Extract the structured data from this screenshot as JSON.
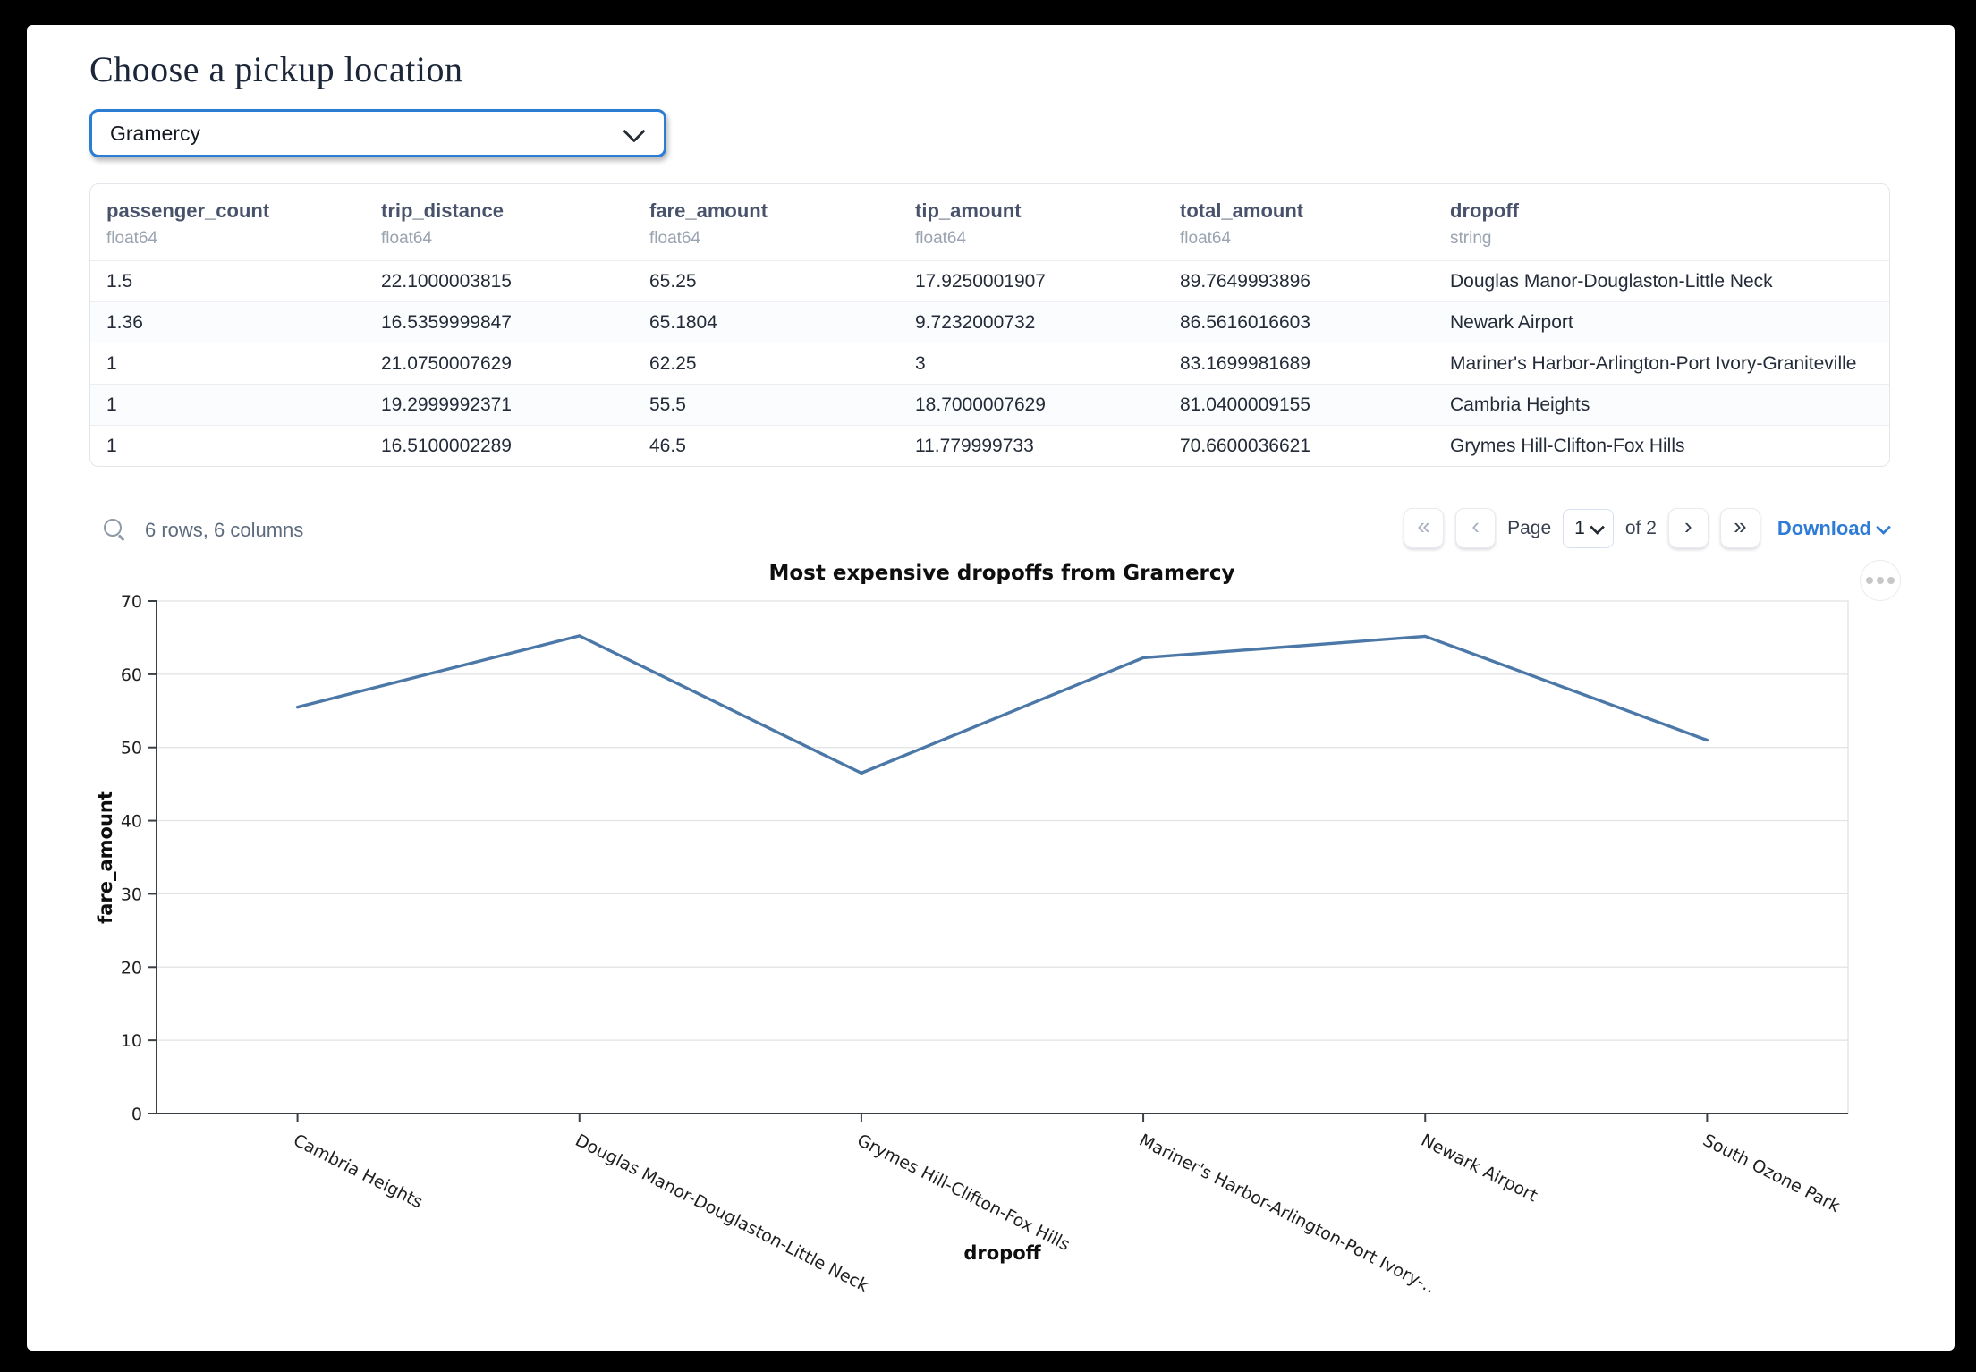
{
  "header": {
    "title": "Choose a pickup location"
  },
  "pickup_select": {
    "value": "Gramercy"
  },
  "table": {
    "columns": [
      {
        "name": "passenger_count",
        "type": "float64"
      },
      {
        "name": "trip_distance",
        "type": "float64"
      },
      {
        "name": "fare_amount",
        "type": "float64"
      },
      {
        "name": "tip_amount",
        "type": "float64"
      },
      {
        "name": "total_amount",
        "type": "float64"
      },
      {
        "name": "dropoff",
        "type": "string"
      }
    ],
    "rows": [
      [
        "1.5",
        "22.1000003815",
        "65.25",
        "17.9250001907",
        "89.7649993896",
        "Douglas Manor-Douglaston-Little Neck"
      ],
      [
        "1.36",
        "16.5359999847",
        "65.1804",
        "9.7232000732",
        "86.5616016603",
        "Newark Airport"
      ],
      [
        "1",
        "21.0750007629",
        "62.25",
        "3",
        "83.1699981689",
        "Mariner's Harbor-Arlington-Port Ivory-Graniteville"
      ],
      [
        "1",
        "19.2999992371",
        "55.5",
        "18.7000007629",
        "81.0400009155",
        "Cambria Heights"
      ],
      [
        "1",
        "16.5100002289",
        "46.5",
        "11.779999733",
        "70.6600036621",
        "Grymes Hill-Clifton-Fox Hills"
      ]
    ],
    "summary": "6 rows, 6 columns"
  },
  "pagination": {
    "first": "«",
    "prev": "‹",
    "page_label": "Page",
    "page_value": "1",
    "of_label": "of 2",
    "next": "›",
    "last": "»",
    "download_label": "Download"
  },
  "chart_data": {
    "type": "line",
    "title": "Most expensive dropoffs from Gramercy",
    "xlabel": "dropoff",
    "ylabel": "fare_amount",
    "categories": [
      "Cambria Heights",
      "Douglas Manor-Douglaston-Little Neck",
      "Grymes Hill-Clifton-Fox Hills",
      "Mariner's Harbor-Arlington-Port Ivory-…",
      "Newark Airport",
      "South Ozone Park"
    ],
    "values": [
      55.5,
      65.25,
      46.5,
      62.25,
      65.1804,
      51.0
    ],
    "ylim": [
      0,
      70
    ],
    "yticks": [
      0,
      10,
      20,
      30,
      40,
      50,
      60,
      70
    ],
    "grid": true,
    "legend": "none",
    "line_color": "#4c78a8"
  }
}
